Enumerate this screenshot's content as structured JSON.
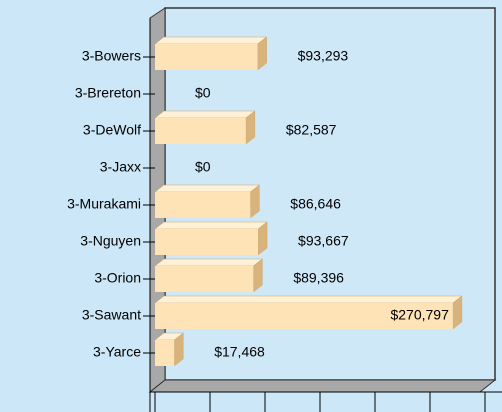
{
  "chart_data": {
    "type": "bar",
    "orientation": "horizontal",
    "categories": [
      "3-Bowers",
      "3-Brereton",
      "3-DeWolf",
      "3-Jaxx",
      "3-Murakami",
      "3-Nguyen",
      "3-Orion",
      "3-Sawant",
      "3-Yarce"
    ],
    "values": [
      93293,
      0,
      82587,
      0,
      86646,
      93667,
      89396,
      270797,
      17468
    ],
    "value_labels": [
      "$93,293",
      "$0",
      "$82,587",
      "$0",
      "$86,646",
      "$93,667",
      "$89,396",
      "$270,797",
      "$17,468"
    ],
    "color": "#fde3b5",
    "xlim": [
      0,
      300000
    ],
    "xticks": [
      0,
      50000,
      100000,
      150000,
      200000,
      250000,
      300000
    ]
  }
}
